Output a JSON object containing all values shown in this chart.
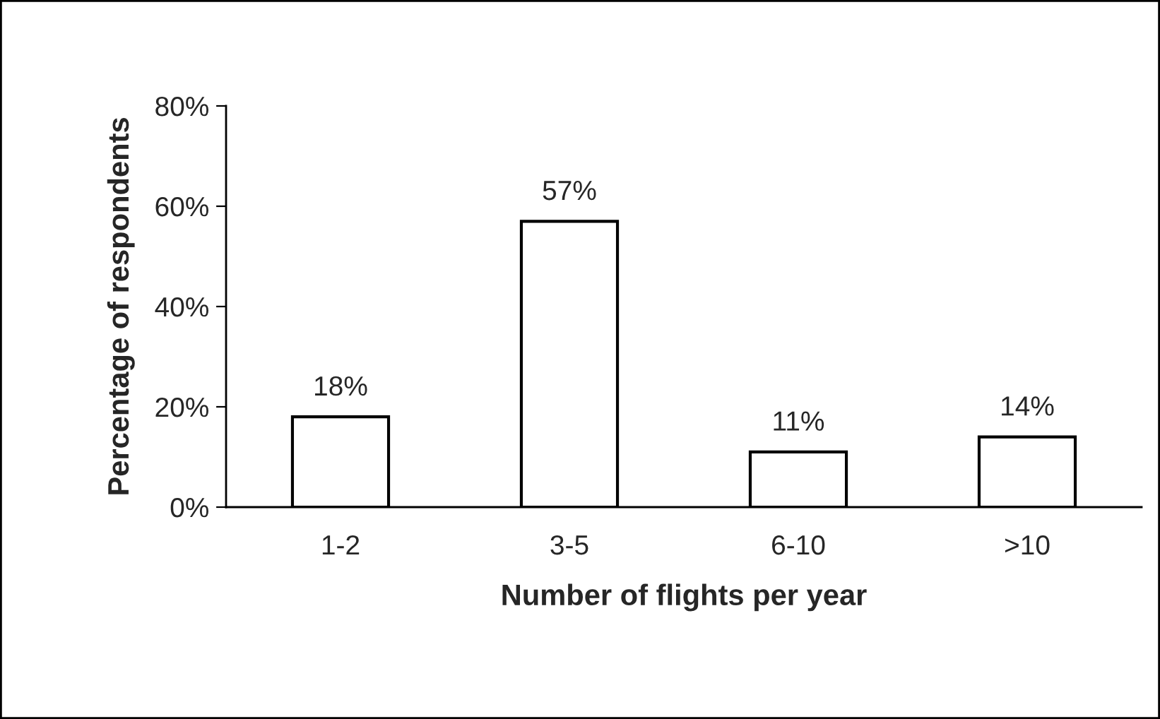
{
  "chart_data": {
    "type": "bar",
    "xlabel": "Number of flights per year",
    "ylabel": "Percentage of respondents",
    "categories": [
      "1-2",
      "3-5",
      "6-10",
      ">10"
    ],
    "values": [
      18,
      57,
      11,
      14
    ],
    "value_labels": [
      "18%",
      "57%",
      "11%",
      "14%"
    ],
    "color": "#ffffff",
    "ylim": [
      0,
      80
    ],
    "yticks": [
      {
        "value": 0,
        "label": "0%"
      },
      {
        "value": 20,
        "label": "20%"
      },
      {
        "value": 40,
        "label": "40%"
      },
      {
        "value": 60,
        "label": "60%"
      },
      {
        "value": 80,
        "label": "80%"
      }
    ],
    "grid": false,
    "legend": false
  }
}
